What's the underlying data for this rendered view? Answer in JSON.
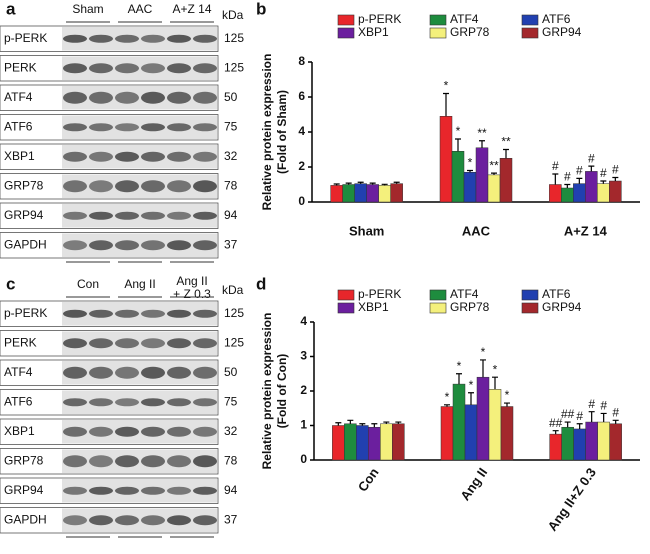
{
  "chart_data": [
    {
      "type": "bar",
      "panel": "b",
      "y_label": [
        "Relative protein expression",
        "(Fold of Sham)"
      ],
      "categories": [
        "Sham",
        "AAC",
        "A+Z 14"
      ],
      "ylim": [
        0,
        8
      ],
      "yticks": [
        0,
        2,
        4,
        6,
        8
      ],
      "series": [
        {
          "name": "p-PERK",
          "color": "#e8262b",
          "values": [
            0.95,
            4.9,
            1.0
          ],
          "errors": [
            0.08,
            1.3,
            0.6
          ],
          "marks": [
            null,
            "*",
            "#"
          ]
        },
        {
          "name": "ATF4",
          "color": "#1e8c3e",
          "values": [
            1.0,
            2.9,
            0.8
          ],
          "errors": [
            0.08,
            0.7,
            0.2
          ],
          "marks": [
            null,
            "*",
            "#"
          ]
        },
        {
          "name": "ATF6",
          "color": "#2140b0",
          "values": [
            1.05,
            1.7,
            1.05
          ],
          "errors": [
            0.08,
            0.1,
            0.3
          ],
          "marks": [
            null,
            "*",
            "#"
          ]
        },
        {
          "name": "XBP1",
          "color": "#6b1f9e",
          "values": [
            1.0,
            3.1,
            1.75
          ],
          "errors": [
            0.08,
            0.4,
            0.3
          ],
          "marks": [
            null,
            "**",
            "#"
          ]
        },
        {
          "name": "GRP78",
          "color": "#f4f07c",
          "values": [
            0.95,
            1.55,
            1.05
          ],
          "errors": [
            0.06,
            0.1,
            0.15
          ],
          "marks": [
            null,
            "**",
            "#"
          ]
        },
        {
          "name": "GRP94",
          "color": "#a3282c",
          "values": [
            1.05,
            2.5,
            1.2
          ],
          "errors": [
            0.08,
            0.5,
            0.2
          ],
          "marks": [
            null,
            "**",
            "#"
          ]
        }
      ]
    },
    {
      "type": "bar",
      "panel": "d",
      "y_label": [
        "Relative protein expression",
        "(Fold of Con)"
      ],
      "categories": [
        "Con",
        "Ang II",
        "Ang II+Z 0.3"
      ],
      "ylim": [
        0,
        4
      ],
      "yticks": [
        0,
        1,
        2,
        3,
        4
      ],
      "series": [
        {
          "name": "p-PERK",
          "color": "#e8262b",
          "values": [
            1.0,
            1.55,
            0.75
          ],
          "errors": [
            0.08,
            0.05,
            0.1
          ],
          "marks": [
            null,
            "*",
            "##"
          ]
        },
        {
          "name": "ATF4",
          "color": "#1e8c3e",
          "values": [
            1.05,
            2.2,
            0.95
          ],
          "errors": [
            0.1,
            0.3,
            0.15
          ],
          "marks": [
            null,
            "*",
            "##"
          ]
        },
        {
          "name": "ATF6",
          "color": "#2140b0",
          "values": [
            1.0,
            1.6,
            0.9
          ],
          "errors": [
            0.05,
            0.35,
            0.15
          ],
          "marks": [
            null,
            "*",
            "#"
          ]
        },
        {
          "name": "XBP1",
          "color": "#6b1f9e",
          "values": [
            0.95,
            2.4,
            1.1
          ],
          "errors": [
            0.1,
            0.5,
            0.3
          ],
          "marks": [
            null,
            "*",
            "#"
          ]
        },
        {
          "name": "GRP78",
          "color": "#f4f07c",
          "values": [
            1.05,
            2.05,
            1.1
          ],
          "errors": [
            0.05,
            0.35,
            0.25
          ],
          "marks": [
            null,
            "*",
            "#"
          ]
        },
        {
          "name": "GRP94",
          "color": "#a3282c",
          "values": [
            1.05,
            1.55,
            1.05
          ],
          "errors": [
            0.05,
            0.1,
            0.1
          ],
          "marks": [
            null,
            "*",
            "#"
          ]
        }
      ]
    }
  ],
  "blots": [
    {
      "panel": "a",
      "unit": "kDa",
      "groups": [
        [
          "Sham"
        ],
        [
          "AAC"
        ],
        [
          "A+Z 14"
        ]
      ],
      "rows": [
        {
          "label": "p-PERK",
          "kda": 125
        },
        {
          "label": "PERK",
          "kda": 125
        },
        {
          "label": "ATF4",
          "kda": 50
        },
        {
          "label": "ATF6",
          "kda": 75
        },
        {
          "label": "XBP1",
          "kda": 32
        },
        {
          "label": "GRP78",
          "kda": 78
        },
        {
          "label": "GRP94",
          "kda": 94
        },
        {
          "label": "GAPDH",
          "kda": 37
        }
      ]
    },
    {
      "panel": "c",
      "unit": "kDa",
      "groups": [
        [
          "Con"
        ],
        [
          "Ang II"
        ],
        [
          "Ang II",
          "+ Z 0.3"
        ]
      ],
      "rows": [
        {
          "label": "p-PERK",
          "kda": 125
        },
        {
          "label": "PERK",
          "kda": 125
        },
        {
          "label": "ATF4",
          "kda": 50
        },
        {
          "label": "ATF6",
          "kda": 75
        },
        {
          "label": "XBP1",
          "kda": 32
        },
        {
          "label": "GRP78",
          "kda": 78
        },
        {
          "label": "GRP94",
          "kda": 94
        },
        {
          "label": "GAPDH",
          "kda": 37
        }
      ]
    }
  ]
}
